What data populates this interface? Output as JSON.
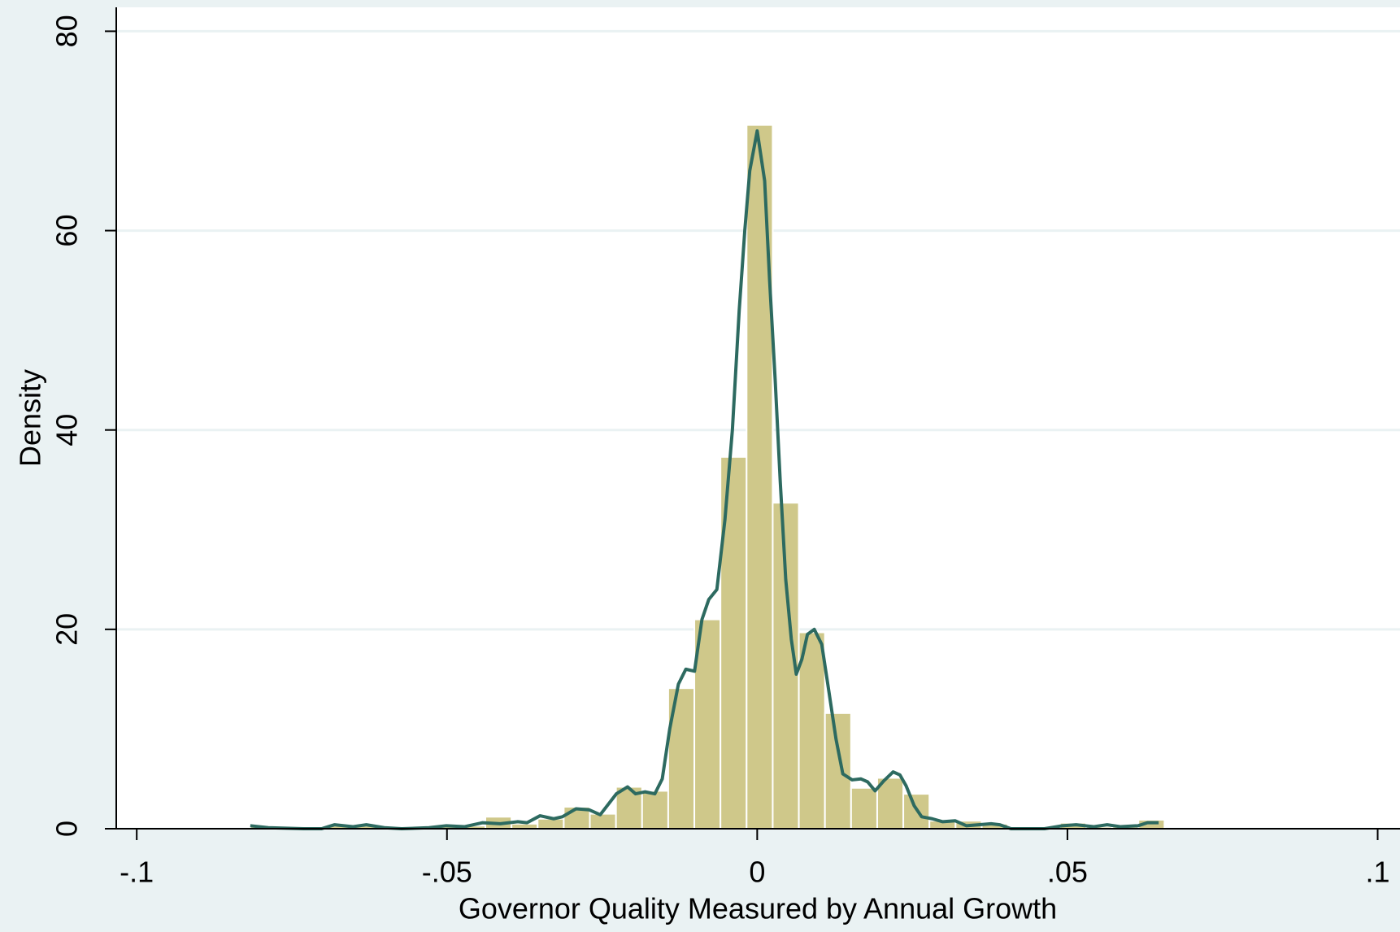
{
  "chart_data": {
    "type": "histogram",
    "x_label": "Governor Quality Measured by Annual Growth",
    "y_label": "Density",
    "bins": [
      -0.0817,
      -0.07749,
      -0.07328,
      -0.06907,
      -0.06486,
      -0.06065,
      -0.05644,
      -0.05223,
      -0.04802,
      -0.04381,
      -0.0396,
      -0.03539,
      -0.03118,
      -0.02697,
      -0.02276,
      -0.01855,
      -0.01434,
      -0.01013,
      -0.00592,
      -0.00171,
      0.0025,
      0.00671,
      0.01092,
      0.01513,
      0.01934,
      0.02355,
      0.02776,
      0.03197,
      0.03618,
      0.04039,
      0.0446,
      0.04881,
      0.05302,
      0.05723,
      0.06144,
      0.06565
    ],
    "values": [
      0.3,
      0,
      0,
      0.3,
      0.3,
      0,
      0,
      0.3,
      0.3,
      1.2,
      0.5,
      1.0,
      2.2,
      1.5,
      4.2,
      3.8,
      14.1,
      21,
      37.3,
      70.6,
      32.7,
      19.7,
      11.6,
      4.1,
      5.1,
      3.5,
      0.8,
      0.8,
      0.5,
      0,
      0,
      0.6,
      0.2,
      0.2,
      0.9
    ],
    "color": "#cfc88a",
    "density_line": {
      "color": "#2d6a60",
      "x": [
        -0.0817,
        -0.0788,
        -0.0731,
        -0.0702,
        -0.0681,
        -0.0652,
        -0.063,
        -0.0601,
        -0.0573,
        -0.0529,
        -0.0501,
        -0.0472,
        -0.0443,
        -0.0414,
        -0.0386,
        -0.0371,
        -0.035,
        -0.0328,
        -0.0314,
        -0.0292,
        -0.0271,
        -0.0253,
        -0.0227,
        -0.0209,
        -0.0196,
        -0.0181,
        -0.0165,
        -0.0153,
        -0.0141,
        -0.0127,
        -0.0115,
        -0.0101,
        -0.0089,
        -0.0078,
        -0.0065,
        -0.0052,
        -0.004,
        -0.0029,
        -0.002,
        -0.0012,
        0,
        0.0012,
        0.002,
        0.0029,
        0.0037,
        0.0046,
        0.0055,
        0.0063,
        0.0072,
        0.0081,
        0.0092,
        0.0104,
        0.0115,
        0.0127,
        0.0138,
        0.0153,
        0.0167,
        0.0178,
        0.019,
        0.0204,
        0.0219,
        0.023,
        0.024,
        0.0253,
        0.0265,
        0.0282,
        0.0299,
        0.0319,
        0.0337,
        0.0357,
        0.0377,
        0.0391,
        0.0409,
        0.0435,
        0.0463,
        0.0492,
        0.0514,
        0.0542,
        0.0564,
        0.0586,
        0.0614,
        0.0629,
        0.0647
      ],
      "values": [
        0.3,
        0.1,
        0,
        0,
        0.4,
        0.2,
        0.4,
        0.1,
        0,
        0.1,
        0.3,
        0.2,
        0.6,
        0.5,
        0.7,
        0.6,
        1.3,
        1.0,
        1.2,
        2.0,
        1.9,
        1.4,
        3.5,
        4.2,
        3.5,
        3.7,
        3.5,
        5.0,
        10,
        14.5,
        16,
        15.8,
        21,
        23,
        24,
        31,
        40,
        52,
        60,
        66,
        70,
        65,
        55,
        45,
        35,
        25,
        19,
        15.5,
        17,
        19.5,
        20,
        18.5,
        14,
        9,
        5.5,
        4.9,
        5,
        4.7,
        3.8,
        4.8,
        5.7,
        5.4,
        4.3,
        2.3,
        1.2,
        1.0,
        0.7,
        0.8,
        0.3,
        0.4,
        0.5,
        0.4,
        0,
        0,
        0,
        0.3,
        0.4,
        0.2,
        0.4,
        0.2,
        0.3,
        0.6,
        0.6
      ]
    },
    "xlim": [
      -0.1033,
      0.1036
    ],
    "xticks": [
      {
        "value": -0.1,
        "label": "-.1"
      },
      {
        "value": -0.05,
        "label": "-.05"
      },
      0,
      {
        "value": 0.05,
        "label": ".05"
      },
      {
        "value": 0.1,
        "label": ".1"
      }
    ],
    "ylim": [
      0,
      82.4
    ],
    "yticks": [
      0,
      20,
      40,
      60,
      80
    ],
    "grid": true
  }
}
